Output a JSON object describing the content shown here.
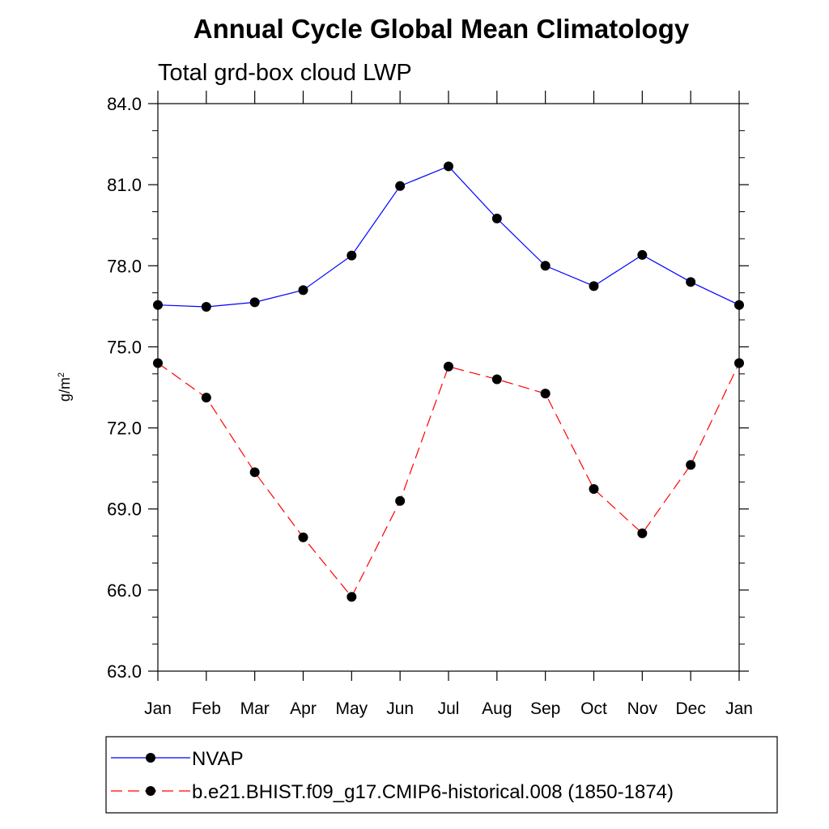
{
  "chart_data": {
    "type": "line",
    "title": "Annual Cycle Global Mean Climatology",
    "subtitle": "Total grd-box cloud LWP",
    "ylabel_base": "g/m",
    "ylabel_sup": "2",
    "xlabel": "",
    "categories": [
      "Jan",
      "Feb",
      "Mar",
      "Apr",
      "May",
      "Jun",
      "Jul",
      "Aug",
      "Sep",
      "Oct",
      "Nov",
      "Dec",
      "Jan"
    ],
    "ylim": [
      63.0,
      84.0
    ],
    "yticks": [
      63.0,
      66.0,
      69.0,
      72.0,
      75.0,
      78.0,
      81.0,
      84.0
    ],
    "ytick_labels": [
      "63.0",
      "66.0",
      "69.0",
      "72.0",
      "75.0",
      "78.0",
      "81.0",
      "84.0"
    ],
    "grid": false,
    "legend_position": "bottom",
    "series": [
      {
        "name": "NVAP",
        "color": "#0000ff",
        "style": "solid",
        "marker": "filled-circle",
        "values": [
          76.55,
          76.48,
          76.65,
          77.1,
          78.38,
          80.95,
          81.68,
          79.75,
          78.0,
          77.25,
          78.4,
          77.4,
          76.55
        ]
      },
      {
        "name": "b.e21.BHIST.f09_g17.CMIP6-historical.008 (1850-1874)",
        "color": "#ff0000",
        "style": "dashed",
        "marker": "filled-circle",
        "values": [
          74.4,
          73.12,
          70.36,
          67.95,
          65.75,
          69.3,
          74.27,
          73.8,
          73.27,
          69.74,
          68.1,
          70.63,
          74.4
        ]
      }
    ]
  }
}
